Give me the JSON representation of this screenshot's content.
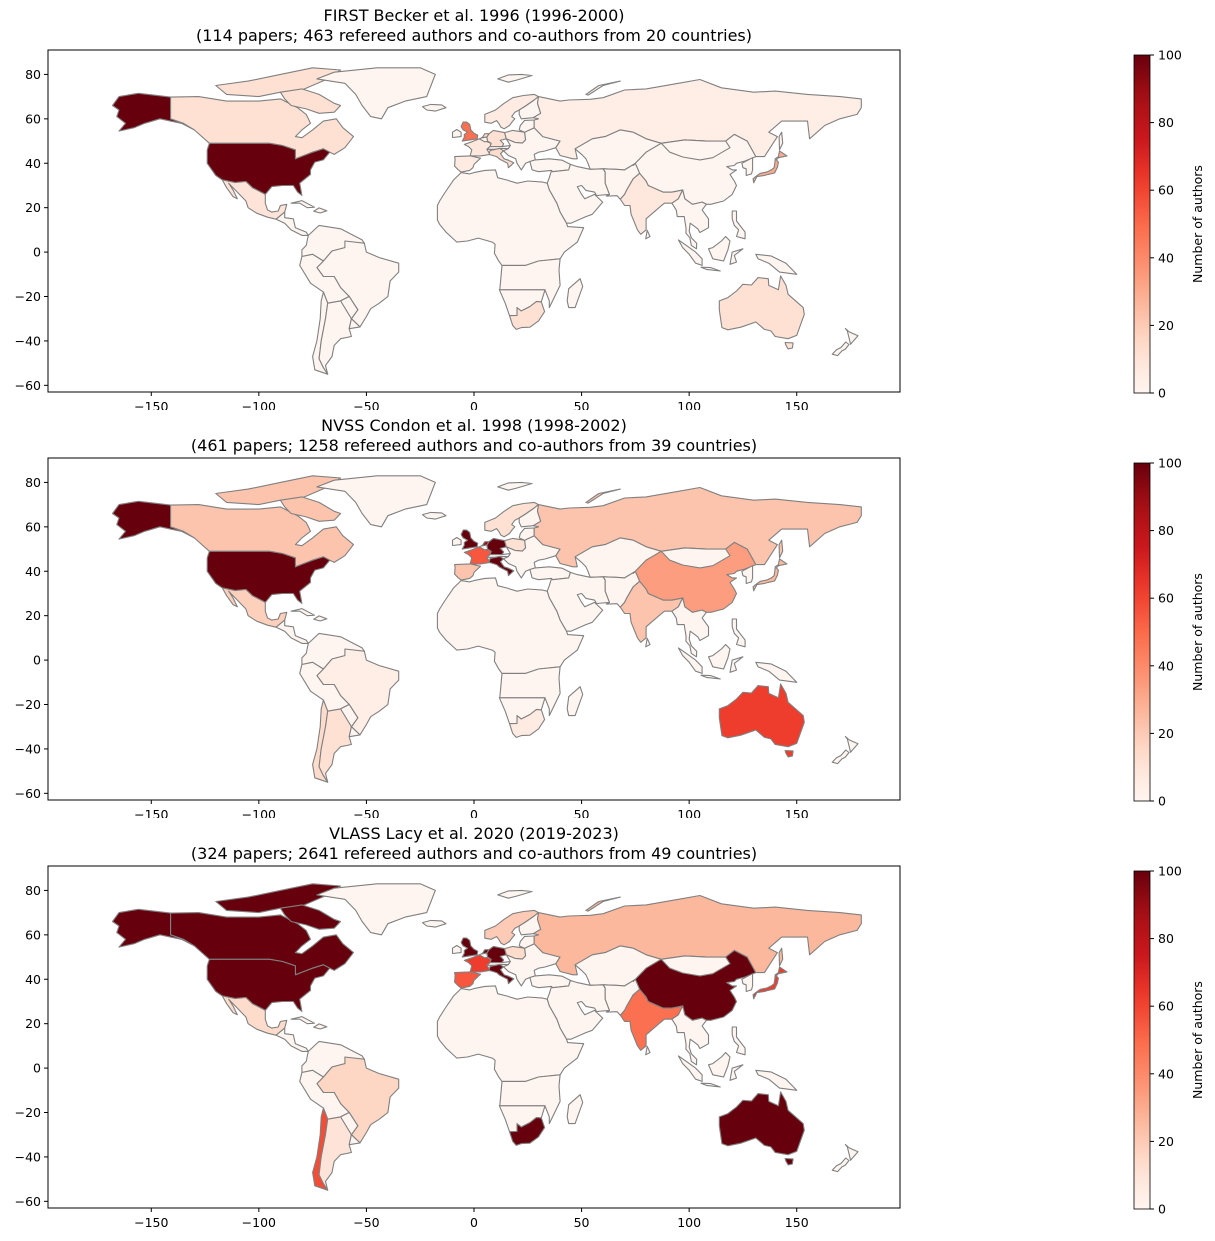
{
  "maps": [
    {
      "title_line1": "FIRST Becker et al. 1996  (1996-2000)",
      "title_line2": "(114 papers; 463 refereed authors and co-authors from 20 countries)",
      "colorbar_label": "Number of authors",
      "countries": {
        "usa": 100,
        "alaska": 100,
        "canada": 12,
        "mexico": 10,
        "uk": 48,
        "netherlands": 14,
        "germany": 12,
        "france": 8,
        "italy": 14,
        "spain": 6,
        "sweden": 6,
        "poland": 6,
        "russia": 4,
        "india": 8,
        "japan": 30,
        "china": 0,
        "australia": 12,
        "south_africa": 12,
        "brazil": 0,
        "chile": 0,
        "argentina": 0,
        "greenland": 0
      }
    },
    {
      "title_line1": "NVSS Condon et al. 1998   (1998-2002)",
      "title_line2": "(461 papers; 1258 refereed authors and co-authors from 39 countries)",
      "colorbar_label": "Number of authors",
      "countries": {
        "usa": 100,
        "alaska": 100,
        "canada": 22,
        "mexico": 18,
        "uk": 100,
        "netherlands": 90,
        "germany": 100,
        "france": 55,
        "italy": 100,
        "spain": 22,
        "sweden": 12,
        "poland": 12,
        "russia": 22,
        "india": 22,
        "japan": 26,
        "china": 34,
        "australia": 62,
        "south_africa": 6,
        "brazil": 4,
        "chile": 14,
        "argentina": 12,
        "greenland": 0
      }
    },
    {
      "title_line1": "VLASS Lacy et al. 2020  (2019-2023)",
      "title_line2": "(324 papers; 2641 refereed authors and co-authors from 49 countries)",
      "colorbar_label": "Number of authors",
      "countries": {
        "usa": 100,
        "alaska": 100,
        "canada": 100,
        "mexico": 14,
        "uk": 100,
        "netherlands": 100,
        "germany": 100,
        "france": 62,
        "italy": 100,
        "spain": 55,
        "sweden": 20,
        "poland": 14,
        "russia": 26,
        "india": 48,
        "japan": 62,
        "china": 100,
        "australia": 100,
        "south_africa": 100,
        "brazil": 16,
        "chile": 58,
        "argentina": 10,
        "greenland": 0
      }
    }
  ],
  "x_ticks": [
    -150,
    -100,
    -50,
    0,
    50,
    100,
    150
  ],
  "y_ticks": [
    80,
    60,
    40,
    20,
    0,
    -20,
    -40,
    -60
  ],
  "colorbar_ticks": [
    0,
    20,
    40,
    60,
    80,
    100
  ],
  "colormap": "Reds",
  "border_color": "#808080"
}
